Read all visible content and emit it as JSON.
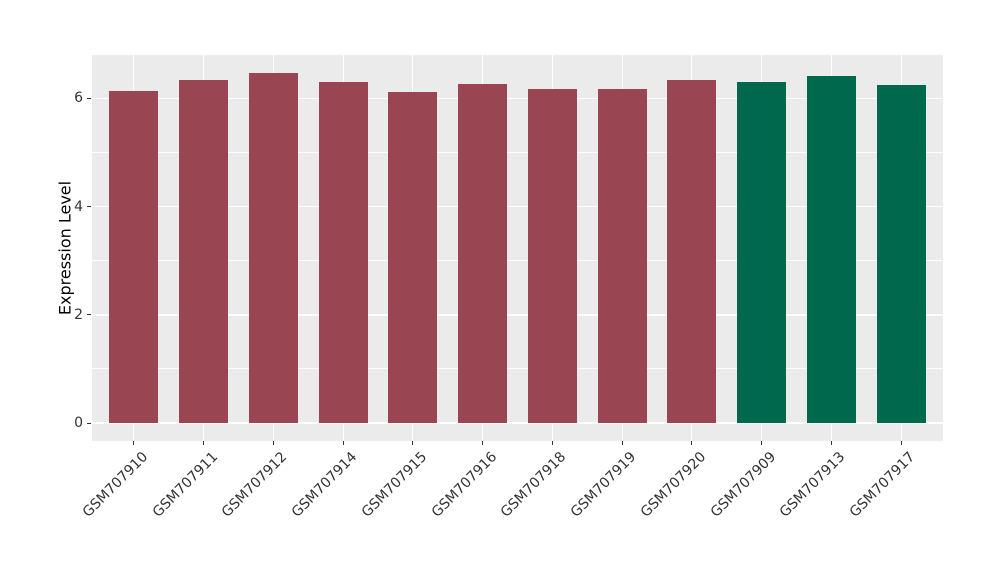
{
  "chart_data": {
    "type": "bar",
    "title": "",
    "xlabel": "",
    "ylabel": "Expression Level",
    "categories": [
      "GSM707910",
      "GSM707911",
      "GSM707912",
      "GSM707914",
      "GSM707915",
      "GSM707916",
      "GSM707918",
      "GSM707919",
      "GSM707920",
      "GSM707909",
      "GSM707913",
      "GSM707917"
    ],
    "values": [
      6.14,
      6.33,
      6.46,
      6.3,
      6.11,
      6.27,
      6.17,
      6.17,
      6.34,
      6.3,
      6.41,
      6.25
    ],
    "bar_colors": [
      "#9A4552",
      "#9A4552",
      "#9A4552",
      "#9A4552",
      "#9A4552",
      "#9A4552",
      "#9A4552",
      "#9A4552",
      "#9A4552",
      "#00694D",
      "#00694D",
      "#00694D"
    ],
    "group_colors": {
      "maroon": "#9A4552",
      "green": "#00694D"
    },
    "yticks": [
      0,
      2,
      4,
      6
    ],
    "yticks_minor": [
      1,
      3,
      5
    ],
    "ylim": [
      -0.33,
      6.8
    ],
    "grid": true,
    "legend": "none",
    "panel_bg": "#EBEBEB",
    "grid_color": "#FFFFFF",
    "tick_color": "#333333"
  }
}
